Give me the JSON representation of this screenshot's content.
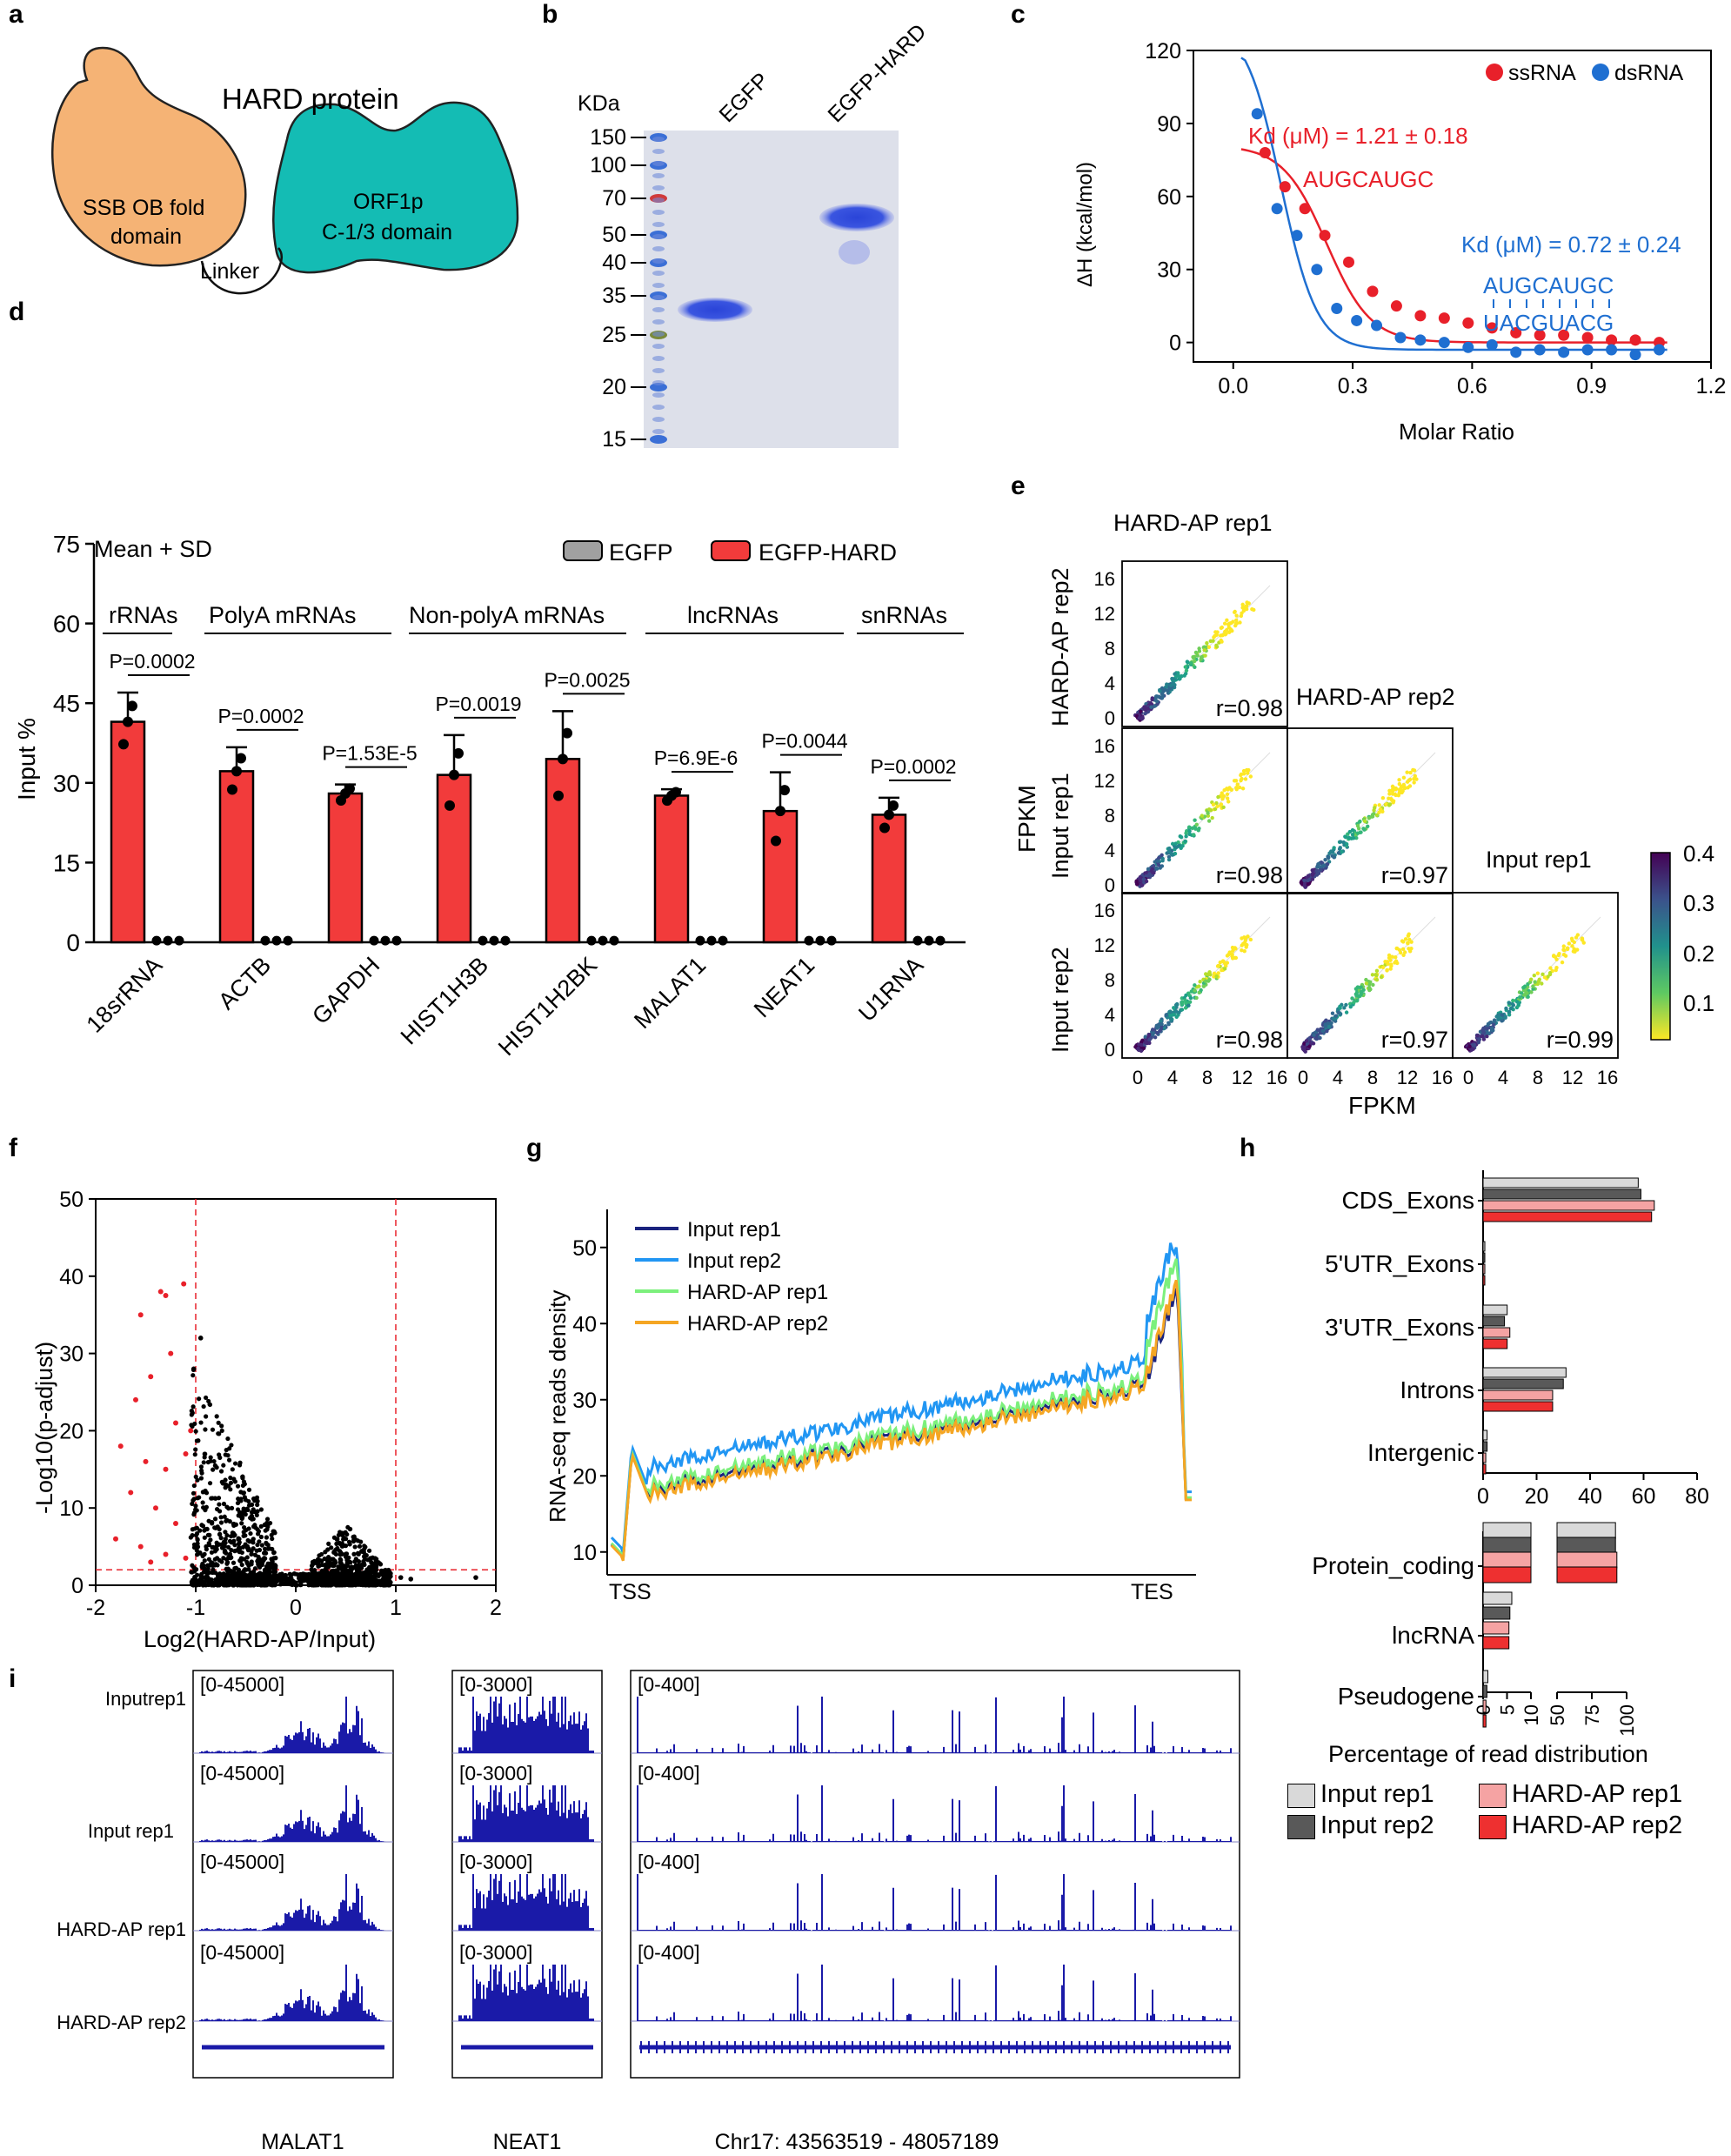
{
  "panel_letters": {
    "a": "a",
    "b": "b",
    "c": "c",
    "d": "d",
    "e": "e",
    "f": "f",
    "g": "g",
    "h": "h",
    "i": "i"
  },
  "panel_a": {
    "title": "HARD protein",
    "left_domain_line1": "SSB OB fold",
    "left_domain_line2": "domain",
    "right_domain_line1": "ORF1p",
    "right_domain_line2": "C-1/3 domain",
    "linker": "Linker",
    "colors": {
      "ob": "#f5b375",
      "orf": "#14bcb4"
    }
  },
  "panel_b": {
    "kda_label": "KDa",
    "markers": [
      "150",
      "100",
      "70",
      "50",
      "40",
      "35",
      "25",
      "20",
      "15"
    ],
    "lanes": [
      "EGFP",
      "EGFP-HARD"
    ]
  },
  "panel_c": {
    "chart_data": {
      "type": "scatter",
      "xlabel": "Molar Ratio",
      "ylabel": "ΔH (kcal/mol)",
      "xlim": [
        -0.1,
        1.2
      ],
      "ylim": [
        -8,
        120
      ],
      "xticks": [
        "0.0",
        "0.3",
        "0.6",
        "0.9",
        "1.2"
      ],
      "yticks": [
        "0",
        "30",
        "60",
        "90",
        "120"
      ],
      "legend": [
        "ssRNA",
        "dsRNA"
      ],
      "series": [
        {
          "name": "ssRNA",
          "color": "#e8202a",
          "x": [
            0.08,
            0.13,
            0.18,
            0.23,
            0.29,
            0.35,
            0.41,
            0.47,
            0.53,
            0.59,
            0.65,
            0.71,
            0.77,
            0.83,
            0.89,
            0.95,
            1.01,
            1.07
          ],
          "y": [
            78,
            64,
            55,
            44,
            33,
            21,
            15,
            11,
            10,
            8,
            6,
            4,
            3,
            3,
            2,
            1,
            1,
            0
          ]
        },
        {
          "name": "dsRNA",
          "color": "#1f6fd1",
          "x": [
            0.06,
            0.11,
            0.16,
            0.21,
            0.26,
            0.31,
            0.36,
            0.42,
            0.47,
            0.53,
            0.59,
            0.65,
            0.71,
            0.77,
            0.83,
            0.89,
            0.95,
            1.01,
            1.07
          ],
          "y": [
            94,
            55,
            44,
            30,
            14,
            9,
            7,
            2,
            1,
            0,
            -2,
            -1,
            -4,
            -3,
            -4,
            -3,
            -3,
            -5,
            -3
          ]
        }
      ],
      "annotations": {
        "ss_kd": "Kd (μM) = 1.21 ± 0.18",
        "ss_seq": "AUGCAUGC",
        "ds_kd": "Kd (μM) = 0.72 ± 0.24",
        "ds_seq_top": "AUGCAUGC",
        "ds_seq_bottom": "UACGUACG"
      }
    }
  },
  "panel_d": {
    "chart_data": {
      "type": "bar",
      "title": "Mean + SD",
      "ylabel": "Input %",
      "ylim": [
        0,
        75
      ],
      "yticks": [
        "0",
        "15",
        "30",
        "45",
        "60",
        "75"
      ],
      "legend": [
        "EGFP",
        "EGFP-HARD"
      ],
      "categories": [
        "18srRNA",
        "ACTB",
        "GAPDH",
        "HIST1H3B",
        "HIST1H2BK",
        "MALAT1",
        "NEAT1",
        "U1RNA"
      ],
      "groups": [
        "rRNAs",
        "PolyA mRNAs",
        "Non-polyA mRNAs",
        "lncRNAs",
        "snRNAs"
      ],
      "series": [
        {
          "name": "EGFP-HARD",
          "color": "#f23b3b",
          "values": [
            41.5,
            32.2,
            28.0,
            31.5,
            34.5,
            27.6,
            24.7,
            24.0
          ],
          "sd": [
            5.5,
            4.5,
            1.7,
            7.5,
            9.0,
            1.2,
            7.3,
            3.2
          ]
        },
        {
          "name": "EGFP",
          "color": "#a0a0a0",
          "values": [
            0.3,
            0.3,
            0.3,
            0.3,
            0.3,
            0.3,
            0.3,
            0.3
          ]
        }
      ],
      "pvalues": [
        "P=0.0002",
        "P=0.0002",
        "P=1.53E-5",
        "P=0.0019",
        "P=0.0025",
        "P=6.9E-6",
        "P=0.0044",
        "P=0.0002"
      ]
    }
  },
  "panel_e": {
    "labels": {
      "col1": "HARD-AP rep1",
      "col2": "HARD-AP rep2",
      "col3": "Input rep1",
      "row1": "HARD-AP rep2",
      "row2": "Input rep1",
      "row3": "Input rep2",
      "axis_y": "FPKM",
      "axis_x": "FPKM"
    },
    "correlations": [
      "r=0.98",
      "r=0.98",
      "r=0.97",
      "r=0.98",
      "r=0.97",
      "r=0.99"
    ],
    "ticks": [
      "0",
      "4",
      "8",
      "12",
      "16"
    ],
    "colorbar_ticks": [
      "0.4",
      "0.3",
      "0.2",
      "0.1"
    ]
  },
  "panel_f": {
    "chart_data": {
      "type": "scatter",
      "xlabel": "Log2(HARD-AP/Input)",
      "ylabel": "-Log10(p-adjust)",
      "xlim": [
        -2,
        2
      ],
      "ylim": [
        0,
        50
      ],
      "xticks": [
        "-2",
        "-1",
        "0",
        "1",
        "2"
      ],
      "yticks": [
        "0",
        "10",
        "20",
        "30",
        "40",
        "50"
      ],
      "thresholds": {
        "x": [
          -1,
          1
        ],
        "y": 2
      },
      "highlight_points": [
        [
          -1.35,
          38
        ],
        [
          -1.3,
          37.5
        ],
        [
          -1.12,
          39
        ],
        [
          -1.55,
          35
        ],
        [
          -1.25,
          30
        ],
        [
          -1.45,
          27
        ],
        [
          -1.6,
          24
        ],
        [
          -1.2,
          21
        ],
        [
          -1.05,
          20
        ],
        [
          -1.75,
          18
        ],
        [
          -1.5,
          16
        ],
        [
          -1.3,
          15
        ],
        [
          -1.1,
          17
        ],
        [
          -1.65,
          12
        ],
        [
          -1.4,
          10
        ],
        [
          -1.2,
          8
        ],
        [
          -1.8,
          6
        ],
        [
          -1.55,
          5
        ],
        [
          -1.3,
          4
        ],
        [
          -1.1,
          3.5
        ],
        [
          -1.45,
          3
        ]
      ]
    }
  },
  "panel_g": {
    "chart_data": {
      "type": "line",
      "ylabel": "RNA-seq reads density",
      "yticks": [
        "10",
        "20",
        "30",
        "40",
        "50"
      ],
      "ylim": [
        7,
        55
      ],
      "x_labels": [
        "TSS",
        "TES"
      ],
      "series": [
        {
          "name": "Input rep1",
          "color": "#1a237e",
          "offset": 0
        },
        {
          "name": "Input rep2",
          "color": "#2196f3",
          "offset": 3
        },
        {
          "name": "HARD-AP rep1",
          "color": "#7cf07c",
          "offset": 0.5
        },
        {
          "name": "HARD-AP rep2",
          "color": "#f5a623",
          "offset": -0.5
        }
      ]
    }
  },
  "panel_h": {
    "chart_data": [
      {
        "type": "bar",
        "orientation": "horizontal",
        "categories": [
          "CDS_Exons",
          "5'UTR_Exons",
          "3'UTR_Exons",
          "Introns",
          "Intergenic"
        ],
        "xticks": [
          "0",
          "20",
          "40",
          "60",
          "80"
        ],
        "series": [
          {
            "name": "Input rep1",
            "values": [
              58,
              0.5,
              9,
              31,
              1.5
            ]
          },
          {
            "name": "Input rep2",
            "values": [
              59,
              0.5,
              8,
              30,
              1.5
            ]
          },
          {
            "name": "HARD-AP rep1",
            "values": [
              64,
              0.5,
              10,
              26,
              1
            ]
          },
          {
            "name": "HARD-AP rep2",
            "values": [
              63,
              0.5,
              9,
              26,
              1
            ]
          }
        ]
      },
      {
        "type": "bar",
        "orientation": "horizontal",
        "broken_axis": true,
        "categories": [
          "Protein_coding",
          "lncRNA",
          "Pseudogene"
        ],
        "xticks": [
          "0",
          "5",
          "10",
          "50",
          "75",
          "100"
        ],
        "series": [
          {
            "name": "Input rep1",
            "values": [
              92,
              6,
              1
            ]
          },
          {
            "name": "Input rep2",
            "values": [
              92,
              5.6,
              0.8
            ]
          },
          {
            "name": "HARD-AP rep1",
            "values": [
              93,
              5.4,
              0.6
            ]
          },
          {
            "name": "HARD-AP rep2",
            "values": [
              93,
              5.4,
              0.6
            ]
          }
        ]
      }
    ],
    "xlabel": "Percentage of read distribution",
    "legend": [
      {
        "label": "Input rep1",
        "color": "#d9d9d9"
      },
      {
        "label": "Input rep2",
        "color": "#595959"
      },
      {
        "label": "HARD-AP rep1",
        "color": "#f5a3a3"
      },
      {
        "label": "HARD-AP rep2",
        "color": "#ee3030"
      }
    ]
  },
  "panel_i": {
    "rows": [
      "Inputrep1",
      "Input rep1",
      "HARD-AP rep1",
      "HARD-AP rep2"
    ],
    "ranges": [
      "[0-45000]",
      "[0-3000]",
      "[0-400]"
    ],
    "loci": [
      "MALAT1",
      "NEAT1",
      "Chr17: 43563519 - 48057189"
    ],
    "track_color": "#1a1aa8"
  }
}
